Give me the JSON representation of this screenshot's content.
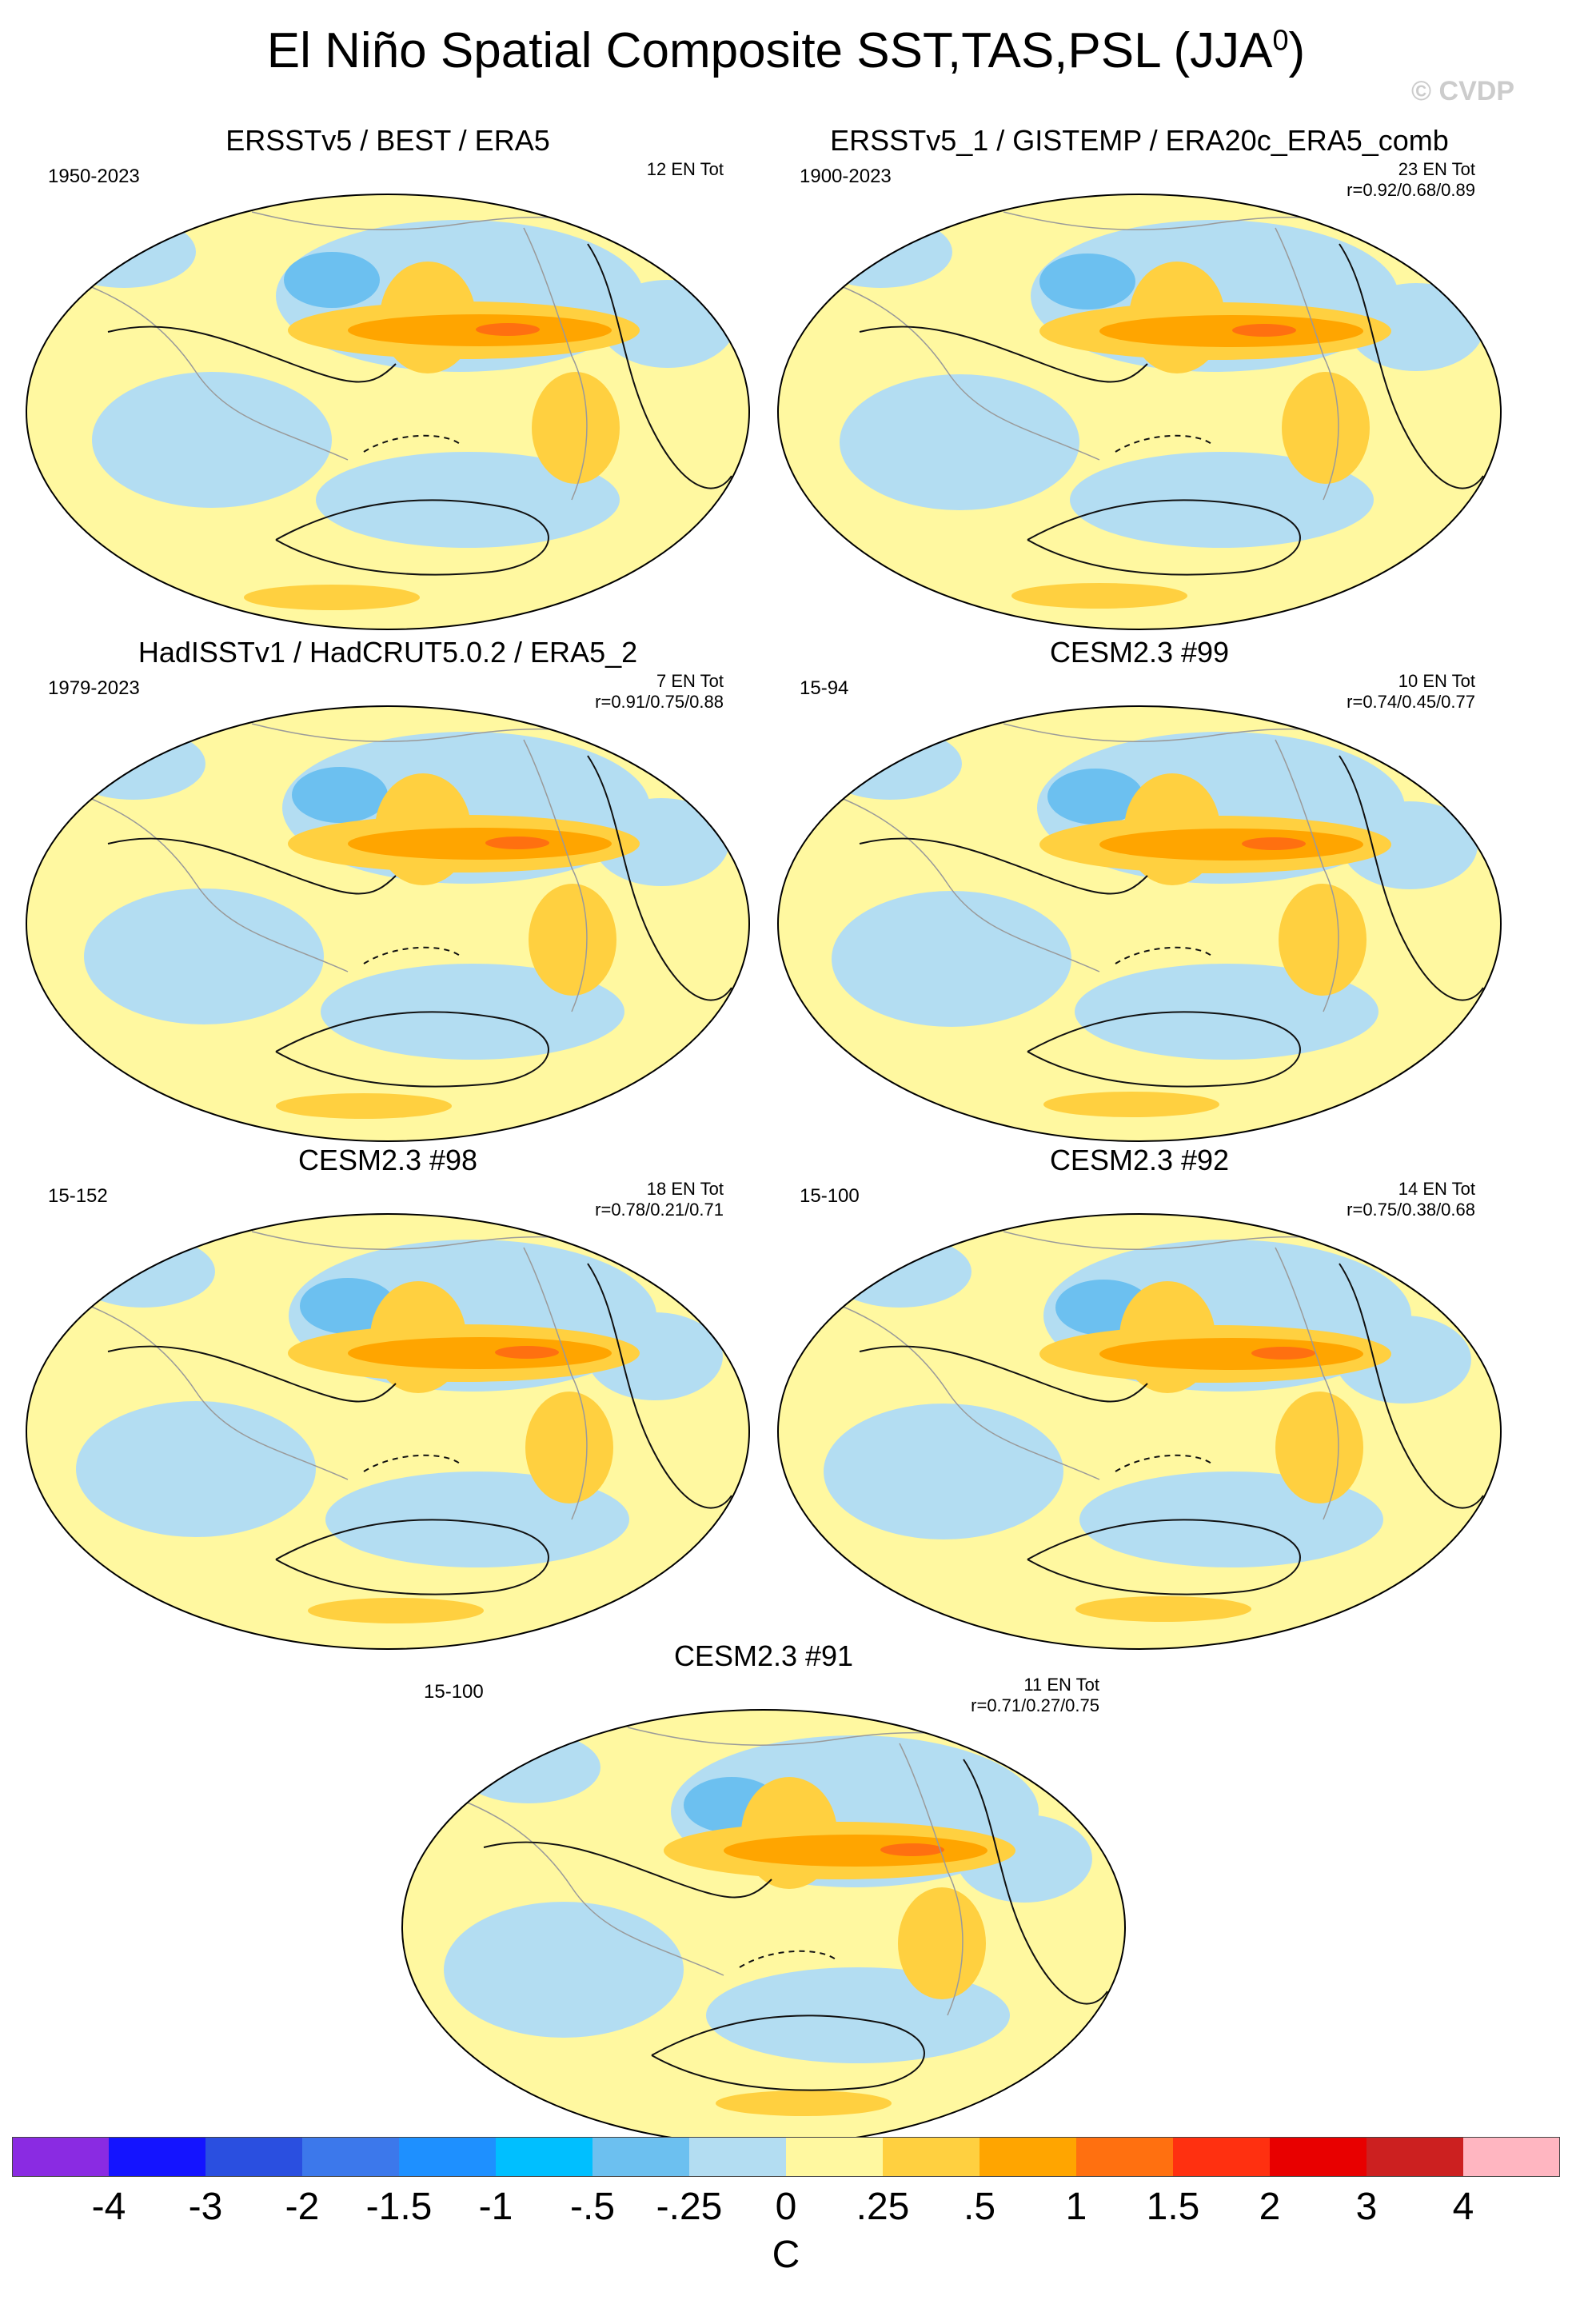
{
  "title_main": "El Niño Spatial Composite SST,TAS,PSL (JJA",
  "title_sup": "0",
  "title_close": ")",
  "watermark": "© CVDP",
  "panels": [
    {
      "title": "ERSSTv5 / BEST / ERA5",
      "years": "1950-2023",
      "en_tot": "12 EN Tot",
      "r": ""
    },
    {
      "title": "ERSSTv5_1 / GISTEMP / ERA20c_ERA5_comb",
      "years": "1900-2023",
      "en_tot": "23 EN Tot",
      "r": "r=0.92/0.68/0.89"
    },
    {
      "title": "HadISSTv1 / HadCRUT5.0.2 / ERA5_2",
      "years": "1979-2023",
      "en_tot": "7 EN Tot",
      "r": "r=0.91/0.75/0.88"
    },
    {
      "title": "CESM2.3 #99",
      "years": "15-94",
      "en_tot": "10 EN Tot",
      "r": "r=0.74/0.45/0.77"
    },
    {
      "title": "CESM2.3 #98",
      "years": "15-152",
      "en_tot": "18 EN Tot",
      "r": "r=0.78/0.21/0.71"
    },
    {
      "title": "CESM2.3 #92",
      "years": "15-100",
      "en_tot": "14 EN Tot",
      "r": "r=0.75/0.38/0.68"
    },
    {
      "title": "CESM2.3 #91",
      "years": "15-100",
      "en_tot": "11 EN Tot",
      "r": "r=0.71/0.27/0.75"
    }
  ],
  "colorbar": {
    "colors": [
      "#8a2be2",
      "#1414ff",
      "#2a4fe0",
      "#3c78eb",
      "#1e90ff",
      "#00bfff",
      "#6cc0f0",
      "#b3ddf2",
      "#fff8a0",
      "#ffd040",
      "#ffa500",
      "#ff7010",
      "#ff3010",
      "#e80000",
      "#cc2020",
      "#ffb6c1"
    ],
    "labels": [
      "-4",
      "-3",
      "-2",
      "-1.5",
      "-1",
      "-.5",
      "-.25",
      "0",
      ".25",
      ".5",
      "1",
      "1.5",
      "2",
      "3",
      "4"
    ],
    "units": "C"
  },
  "map_colors": {
    "ocean_base": "#fff8a0",
    "cool_light": "#b3ddf2",
    "cool_mid": "#6cc0f0",
    "warm_mid": "#ffd040",
    "warm_strong": "#ffa500",
    "warm_hot": "#ff7010",
    "contour": "#111111",
    "coast": "#9a9a9a"
  }
}
